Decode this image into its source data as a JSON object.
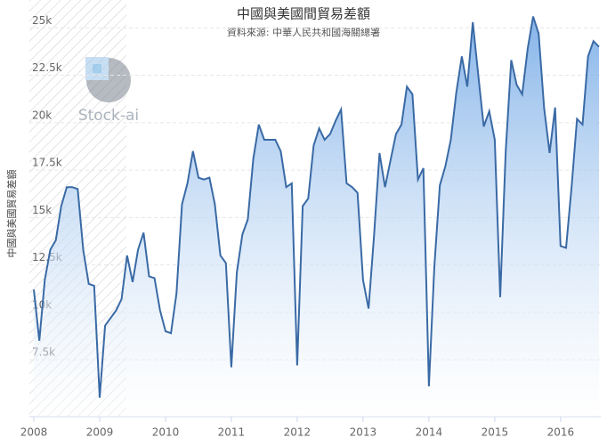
{
  "chart_data": {
    "type": "area",
    "title": "中國與美國間貿易差額",
    "subtitle": "資料來源: 中華人民共和國海關總署",
    "y_label": "中國與美國貿易差額",
    "watermark": "Stock-ai",
    "categories": [
      "2008",
      null,
      null,
      null,
      null,
      null,
      null,
      null,
      null,
      null,
      null,
      null,
      "2009",
      null,
      null,
      null,
      null,
      null,
      null,
      null,
      null,
      null,
      null,
      null,
      "2010",
      null,
      null,
      null,
      null,
      null,
      null,
      null,
      null,
      null,
      null,
      null,
      "2011",
      null,
      null,
      null,
      null,
      null,
      null,
      null,
      null,
      null,
      null,
      null,
      "2012",
      null,
      null,
      null,
      null,
      null,
      null,
      null,
      null,
      null,
      null,
      null,
      "2013",
      null,
      null,
      null,
      null,
      null,
      null,
      null,
      null,
      null,
      null,
      null,
      "2014",
      null,
      null,
      null,
      null,
      null,
      null,
      null,
      null,
      null,
      null,
      null,
      "2015",
      null,
      null,
      null,
      null,
      null,
      null,
      null,
      null,
      null,
      null,
      null,
      "2016",
      null,
      null,
      null,
      null,
      null,
      null,
      null
    ],
    "values": [
      11200,
      8500,
      11700,
      13300,
      13800,
      15600,
      16600,
      16600,
      16500,
      13300,
      11500,
      11400,
      5500,
      9300,
      9700,
      10100,
      10700,
      13000,
      11600,
      13300,
      14200,
      11900,
      11800,
      10100,
      9000,
      8900,
      11000,
      15700,
      16800,
      18500,
      17100,
      17000,
      17100,
      15700,
      13000,
      12600,
      7100,
      12100,
      14100,
      14900,
      18100,
      19900,
      19100,
      19100,
      19100,
      18500,
      16600,
      16800,
      7200,
      15600,
      16000,
      18800,
      19700,
      19100,
      19400,
      20100,
      20700,
      16800,
      16600,
      16300,
      11700,
      10200,
      14000,
      18400,
      16600,
      18000,
      19400,
      19900,
      21900,
      21500,
      17000,
      17600,
      6100,
      12400,
      16700,
      17700,
      19100,
      21600,
      23500,
      21900,
      25300,
      22500,
      19800,
      20600,
      19100,
      10800,
      18500,
      23300,
      22000,
      21500,
      23900,
      25600,
      24700,
      20800,
      18400,
      20800,
      13500,
      13400,
      16600,
      20200,
      19900,
      23500,
      24300,
      24000
    ],
    "color": "#3a6aa5",
    "ylim": [
      4500,
      26000
    ],
    "yticks": [
      {
        "value": 7500,
        "label": "7.5k"
      },
      {
        "value": 10000,
        "label": "10k"
      },
      {
        "value": 12500,
        "label": "12.5k"
      },
      {
        "value": 15000,
        "label": "15k"
      },
      {
        "value": 17500,
        "label": "17.5k"
      },
      {
        "value": 20000,
        "label": "20k"
      },
      {
        "value": 22500,
        "label": "22.5k"
      },
      {
        "value": 25000,
        "label": "25k"
      }
    ],
    "grid": true
  }
}
